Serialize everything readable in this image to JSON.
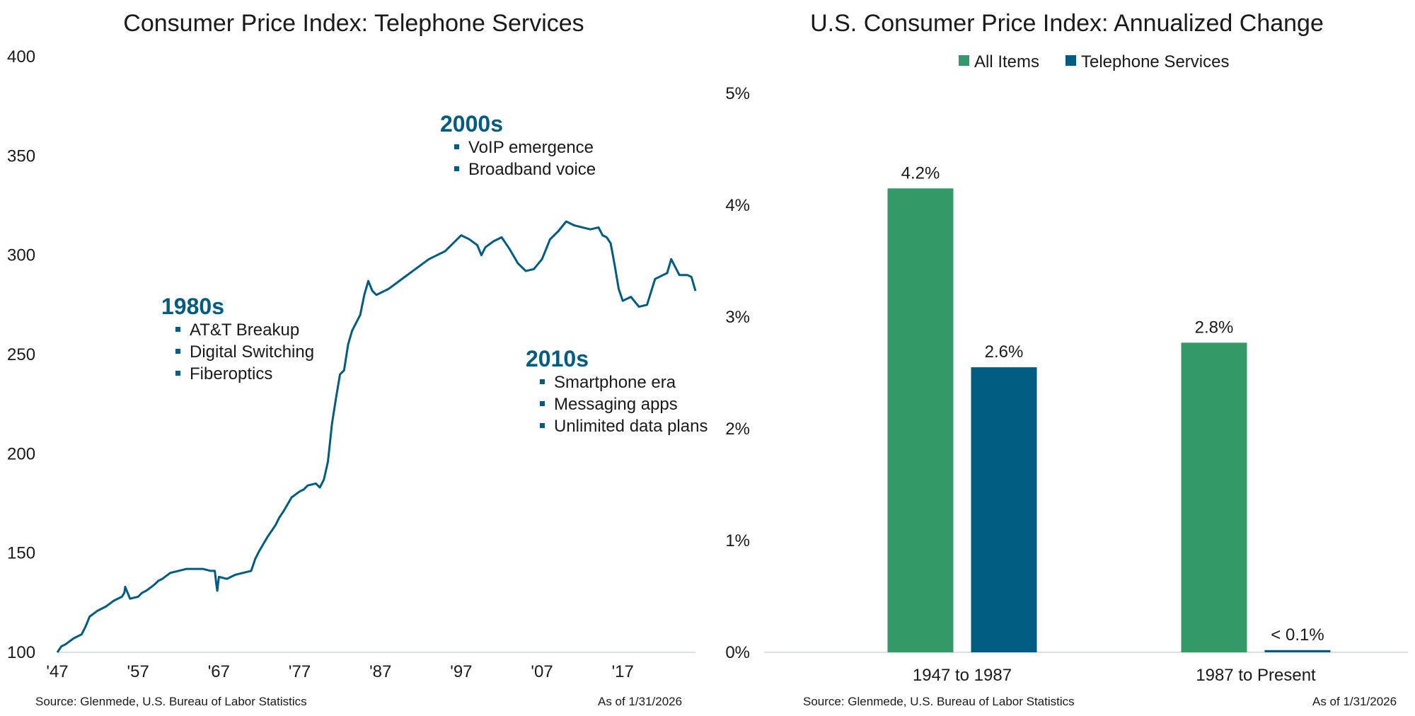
{
  "colors": {
    "green": "#339966",
    "blue": "#005c80",
    "axis": "#cfd6dd",
    "text": "#1a1a1a"
  },
  "left": {
    "footer_source": "Source: Glenmede, U.S. Bureau of Labor Statistics",
    "footer_date": "As of 1/31/2026",
    "annotations": [
      {
        "heading": "1980s",
        "items": [
          "AT&T Breakup",
          "Digital Switching",
          "Fiberoptics"
        ]
      },
      {
        "heading": "2000s",
        "items": [
          "VoIP emergence",
          "Broadband voice"
        ]
      },
      {
        "heading": "2010s",
        "items": [
          "Smartphone era",
          "Messaging apps",
          "Unlimited data plans"
        ]
      }
    ]
  },
  "right": {
    "footer_source": "Source: Glenmede, U.S. Bureau of Labor Statistics",
    "footer_date": "As of 1/31/2026"
  },
  "chart_data": [
    {
      "type": "line",
      "title": "Consumer Price Index: Telephone Services",
      "xlabel": "",
      "ylabel": "",
      "xlim": [
        1947,
        2026
      ],
      "ylim": [
        100,
        400
      ],
      "x_ticks": [
        1947,
        1957,
        1967,
        1977,
        1987,
        1997,
        2007,
        2017
      ],
      "x_tick_labels": [
        "'47",
        "'57",
        "'67",
        "'77",
        "'87",
        "'97",
        "'07",
        "'17"
      ],
      "y_ticks": [
        100,
        150,
        200,
        250,
        300,
        350,
        400
      ],
      "y_tick_labels": [
        "100",
        "150",
        "200",
        "250",
        "300",
        "350",
        "400"
      ],
      "series": [
        {
          "name": "Telephone Services",
          "x": [
            1947,
            1947.5,
            1948,
            1949,
            1950,
            1950.5,
            1951,
            1952,
            1953,
            1954,
            1955,
            1955.3,
            1955.4,
            1956,
            1957,
            1957.5,
            1958,
            1959,
            1959.5,
            1960,
            1961,
            1962,
            1963,
            1964,
            1965,
            1966,
            1966.5,
            1966.7,
            1966.8,
            1967,
            1968,
            1969,
            1970,
            1971,
            1971.5,
            1972,
            1973,
            1974,
            1974.5,
            1975,
            1976,
            1977,
            1977.5,
            1978,
            1979,
            1979.5,
            1980,
            1980.5,
            1981,
            1981.5,
            1982,
            1982.5,
            1983,
            1983.5,
            1984,
            1984.5,
            1985,
            1985.5,
            1986,
            1986.5,
            1987,
            1987.5,
            1988,
            1989,
            1990,
            1991,
            1992,
            1993,
            1994,
            1995,
            1996,
            1997,
            1998,
            1999,
            1999.5,
            2000,
            2001,
            2002,
            2003,
            2004,
            2005,
            2006,
            2007,
            2008,
            2009,
            2010,
            2011,
            2012,
            2013,
            2014,
            2014.5,
            2015,
            2015.5,
            2016,
            2016.5,
            2017,
            2018,
            2019,
            2020,
            2021,
            2022,
            2022.5,
            2023,
            2024,
            2025,
            2025.5,
            2026
          ],
          "values": [
            100,
            103,
            104,
            107,
            109,
            113,
            118,
            121,
            123,
            126,
            128,
            130,
            133,
            127,
            128,
            130,
            131,
            134,
            136,
            137,
            140,
            141,
            142,
            142,
            142,
            141,
            141,
            134,
            131,
            138,
            137,
            139,
            140,
            141,
            147,
            151,
            158,
            164,
            168,
            171,
            178,
            181,
            182,
            184,
            185,
            183,
            187,
            196,
            215,
            228,
            240,
            242,
            255,
            262,
            266,
            270,
            280,
            287,
            282,
            280,
            281,
            282,
            283,
            286,
            289,
            292,
            295,
            298,
            300,
            302,
            306,
            310,
            308,
            305,
            300,
            304,
            307,
            309,
            303,
            296,
            292,
            293,
            298,
            308,
            312,
            317,
            315,
            314,
            313,
            314,
            310,
            309,
            306,
            295,
            283,
            277,
            279,
            274,
            275,
            288,
            290,
            291,
            298,
            290,
            290,
            289,
            282
          ]
        }
      ],
      "annotations": [
        "1980s",
        "2000s",
        "2010s"
      ]
    },
    {
      "type": "bar",
      "title": "U.S. Consumer Price Index: Annualized Change",
      "xlabel": "",
      "ylabel": "",
      "ylim": [
        0,
        5
      ],
      "y_ticks": [
        0,
        1,
        2,
        3,
        4,
        5
      ],
      "y_tick_labels": [
        "0%",
        "1%",
        "2%",
        "3%",
        "4%",
        "5%"
      ],
      "legend_position": "top-center",
      "categories": [
        "1947 to 1987",
        "1987 to Present"
      ],
      "series": [
        {
          "name": "All Items",
          "values": [
            4.15,
            2.77
          ],
          "labels": [
            "4.2%",
            "2.8%"
          ],
          "color": "#339966"
        },
        {
          "name": "Telephone Services",
          "values": [
            2.55,
            0.02
          ],
          "labels": [
            "2.6%",
            "< 0.1%"
          ],
          "color": "#005c80"
        }
      ]
    }
  ]
}
